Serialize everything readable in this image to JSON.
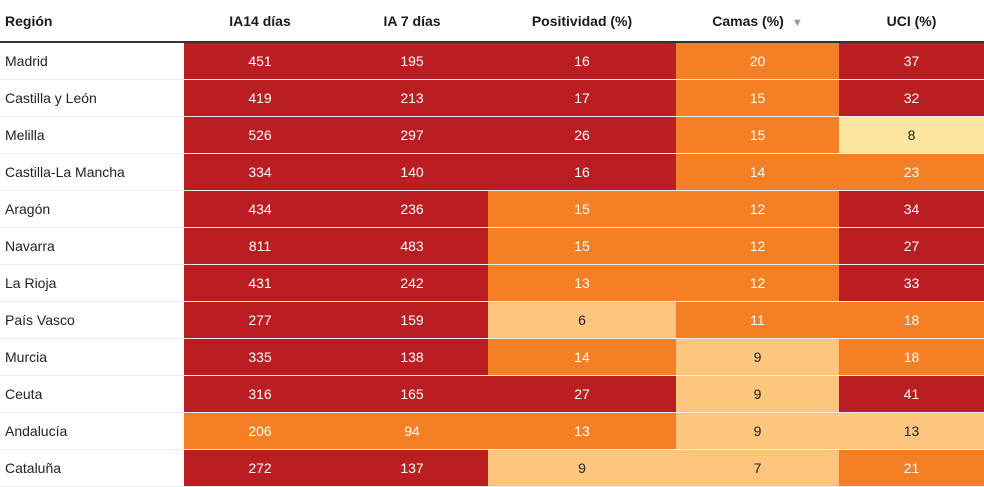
{
  "colors": {
    "high": "#bb1e22",
    "medium_high": "#f47f25",
    "medium": "#fec57f",
    "low": "#fde6a0"
  },
  "headers": {
    "region": "Región",
    "ia14": "IA14 días",
    "ia7": "IA 7 días",
    "positividad": "Positividad (%)",
    "camas": "Camas (%)",
    "uci": "UCI (%)",
    "sort_icon": "▼"
  },
  "rows": [
    {
      "region": "Madrid",
      "ia14": "451",
      "ia7": "195",
      "positividad": "16",
      "camas": "20",
      "uci": "37"
    },
    {
      "region": "Castilla y León",
      "ia14": "419",
      "ia7": "213",
      "positividad": "17",
      "camas": "15",
      "uci": "32"
    },
    {
      "region": "Melilla",
      "ia14": "526",
      "ia7": "297",
      "positividad": "26",
      "camas": "15",
      "uci": "8"
    },
    {
      "region": "Castilla-La Mancha",
      "ia14": "334",
      "ia7": "140",
      "positividad": "16",
      "camas": "14",
      "uci": "23"
    },
    {
      "region": "Aragón",
      "ia14": "434",
      "ia7": "236",
      "positividad": "15",
      "camas": "12",
      "uci": "34"
    },
    {
      "region": "Navarra",
      "ia14": "811",
      "ia7": "483",
      "positividad": "15",
      "camas": "12",
      "uci": "27"
    },
    {
      "region": "La Rioja",
      "ia14": "431",
      "ia7": "242",
      "positividad": "13",
      "camas": "12",
      "uci": "33"
    },
    {
      "region": "País Vasco",
      "ia14": "277",
      "ia7": "159",
      "positividad": "6",
      "camas": "11",
      "uci": "18"
    },
    {
      "region": "Murcia",
      "ia14": "335",
      "ia7": "138",
      "positividad": "14",
      "camas": "9",
      "uci": "18"
    },
    {
      "region": "Ceuta",
      "ia14": "316",
      "ia7": "165",
      "positividad": "27",
      "camas": "9",
      "uci": "41"
    },
    {
      "region": "Andalucía",
      "ia14": "206",
      "ia7": "94",
      "positividad": "13",
      "camas": "9",
      "uci": "13"
    },
    {
      "region": "Cataluña",
      "ia14": "272",
      "ia7": "137",
      "positividad": "9",
      "camas": "7",
      "uci": "21"
    }
  ]
}
